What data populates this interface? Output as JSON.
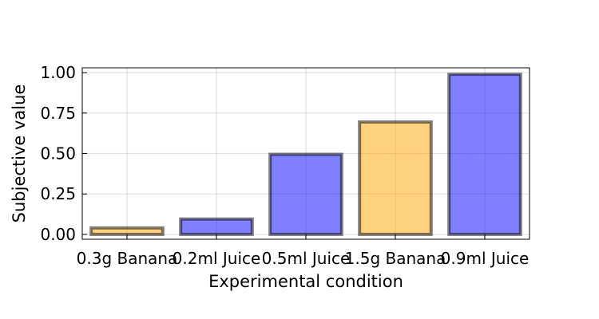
{
  "chart_data": {
    "type": "bar",
    "categories": [
      "0.3g Banana",
      "0.2ml Juice",
      "0.5ml Juice",
      "1.5g Banana",
      "0.9ml Juice"
    ],
    "values": [
      0.04,
      0.095,
      0.495,
      0.695,
      0.99
    ],
    "bar_colors": [
      "#ffa500",
      "#0000ff",
      "#0000ff",
      "#ffa500",
      "#0000ff"
    ],
    "xlabel": "Experimental condition",
    "ylabel": "Subjective value",
    "ylim": [
      -0.03,
      1.03
    ],
    "yticks": [
      0,
      0.25,
      0.5,
      0.75,
      1.0
    ],
    "ytick_labels": [
      "0.00",
      "0.25",
      "0.50",
      "0.75",
      "1.00"
    ],
    "grid": true,
    "legend": "none"
  }
}
